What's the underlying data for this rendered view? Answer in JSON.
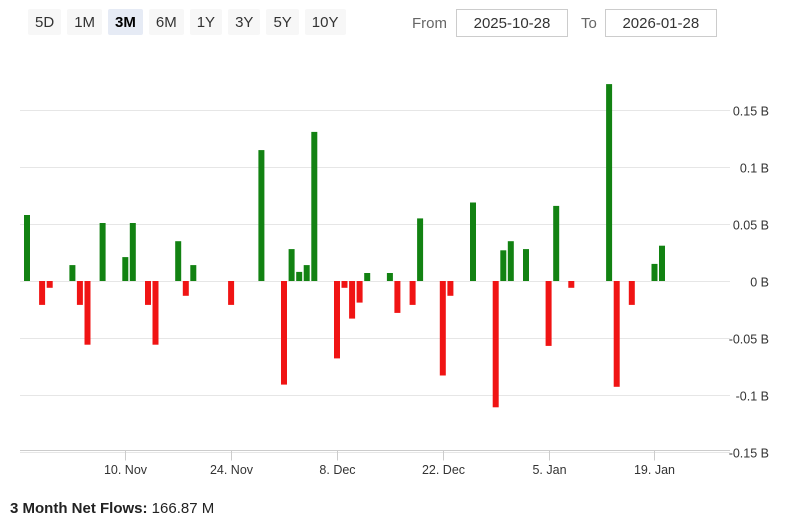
{
  "range_selector": {
    "buttons": [
      {
        "label": "5D",
        "active": false
      },
      {
        "label": "1M",
        "active": false
      },
      {
        "label": "3M",
        "active": true
      },
      {
        "label": "6M",
        "active": false
      },
      {
        "label": "1Y",
        "active": false
      },
      {
        "label": "3Y",
        "active": false
      },
      {
        "label": "5Y",
        "active": false
      },
      {
        "label": "10Y",
        "active": false
      }
    ]
  },
  "date_range": {
    "from_label": "From",
    "from_value": "2025-10-28",
    "to_label": "To",
    "to_value": "2026-01-28"
  },
  "summary": {
    "label": "3 Month Net Flows:",
    "value": "166.87 M"
  },
  "colors": {
    "positive": "#128212",
    "negative": "#f01414",
    "grid": "#e6e6e6",
    "axis": "#cccccc"
  },
  "chart_data": {
    "type": "bar",
    "title": "",
    "xlabel": "",
    "ylabel": "",
    "ylim": [
      -0.15,
      0.17
    ],
    "y_ticks": [
      0.15,
      0.1,
      0.05,
      0,
      -0.05,
      -0.1,
      -0.15
    ],
    "y_tick_labels": [
      "0.15 B",
      "0.1 B",
      "0.05 B",
      "0 B",
      "-0.05 B",
      "-0.1 B",
      "-0.15 B"
    ],
    "x_tick_labels": [
      {
        "label": "10. Nov",
        "date": "2025-11-10"
      },
      {
        "label": "24. Nov",
        "date": "2025-11-24"
      },
      {
        "label": "8. Dec",
        "date": "2025-12-08"
      },
      {
        "label": "22. Dec",
        "date": "2025-12-22"
      },
      {
        "label": "5. Jan",
        "date": "2026-01-05"
      },
      {
        "label": "19. Jan",
        "date": "2026-01-19"
      }
    ],
    "grid": true,
    "series": [
      {
        "values": [
          {
            "date": "2025-10-28",
            "value": 0.058
          },
          {
            "date": "2025-10-30",
            "value": -0.021
          },
          {
            "date": "2025-10-31",
            "value": -0.006
          },
          {
            "date": "2025-11-03",
            "value": 0.014
          },
          {
            "date": "2025-11-04",
            "value": -0.021
          },
          {
            "date": "2025-11-05",
            "value": -0.056
          },
          {
            "date": "2025-11-07",
            "value": 0.051
          },
          {
            "date": "2025-11-10",
            "value": 0.021
          },
          {
            "date": "2025-11-11",
            "value": 0.051
          },
          {
            "date": "2025-11-13",
            "value": -0.021
          },
          {
            "date": "2025-11-14",
            "value": -0.056
          },
          {
            "date": "2025-11-17",
            "value": 0.035
          },
          {
            "date": "2025-11-18",
            "value": -0.013
          },
          {
            "date": "2025-11-19",
            "value": 0.014
          },
          {
            "date": "2025-11-24",
            "value": -0.021
          },
          {
            "date": "2025-11-28",
            "value": 0.115
          },
          {
            "date": "2025-12-01",
            "value": -0.091
          },
          {
            "date": "2025-12-02",
            "value": 0.028
          },
          {
            "date": "2025-12-03",
            "value": 0.008
          },
          {
            "date": "2025-12-04",
            "value": 0.014
          },
          {
            "date": "2025-12-05",
            "value": 0.131
          },
          {
            "date": "2025-12-08",
            "value": -0.068
          },
          {
            "date": "2025-12-09",
            "value": -0.006
          },
          {
            "date": "2025-12-10",
            "value": -0.033
          },
          {
            "date": "2025-12-11",
            "value": -0.019
          },
          {
            "date": "2025-12-12",
            "value": 0.007
          },
          {
            "date": "2025-12-15",
            "value": 0.007
          },
          {
            "date": "2025-12-16",
            "value": -0.028
          },
          {
            "date": "2025-12-18",
            "value": -0.021
          },
          {
            "date": "2025-12-19",
            "value": 0.055
          },
          {
            "date": "2025-12-22",
            "value": -0.083
          },
          {
            "date": "2025-12-23",
            "value": -0.013
          },
          {
            "date": "2025-12-26",
            "value": 0.069
          },
          {
            "date": "2025-12-29",
            "value": -0.111
          },
          {
            "date": "2025-12-30",
            "value": 0.027
          },
          {
            "date": "2025-12-31",
            "value": 0.035
          },
          {
            "date": "2026-01-02",
            "value": 0.028
          },
          {
            "date": "2026-01-05",
            "value": -0.057
          },
          {
            "date": "2026-01-06",
            "value": 0.066
          },
          {
            "date": "2026-01-08",
            "value": -0.006
          },
          {
            "date": "2026-01-13",
            "value": 0.173
          },
          {
            "date": "2026-01-14",
            "value": -0.093
          },
          {
            "date": "2026-01-16",
            "value": -0.021
          },
          {
            "date": "2026-01-19",
            "value": 0.015
          },
          {
            "date": "2026-01-20",
            "value": 0.031
          }
        ]
      }
    ]
  }
}
